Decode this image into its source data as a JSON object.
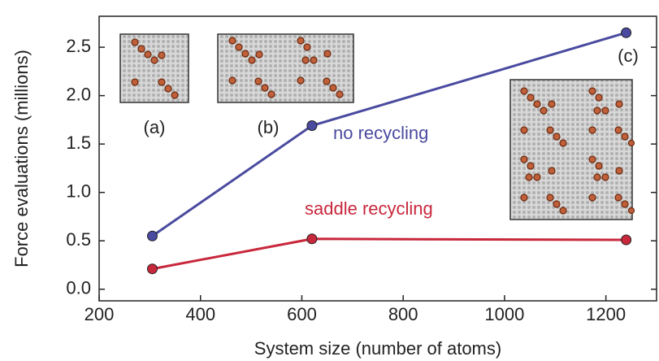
{
  "chart_data": {
    "type": "line",
    "x_label": "System size (number of atoms)",
    "y_label": "Force evaluations (millions)",
    "series": [
      {
        "name": "no recycling",
        "color": "#4a4aa0",
        "x": [
          305,
          620,
          1240
        ],
        "values": [
          0.55,
          1.69,
          2.65
        ]
      },
      {
        "name": "saddle recycling",
        "color": "#c8283c",
        "x": [
          305,
          620,
          1240
        ],
        "values": [
          0.21,
          0.52,
          0.51
        ]
      }
    ],
    "annotations": [
      "(a)",
      "(b)",
      "(c)"
    ],
    "xlim": [
      200,
      1300
    ],
    "xticks": [
      200,
      400,
      600,
      800,
      1000,
      1200
    ],
    "ylim": [
      -0.12,
      2.82
    ],
    "yticks": [
      {
        "value": 0,
        "label": "0.0"
      },
      {
        "value": 0.5,
        "label": "0.5"
      },
      {
        "value": 1,
        "label": "1.0"
      },
      {
        "value": 1.5,
        "label": "1.5"
      },
      {
        "value": 2,
        "label": "2.0"
      },
      {
        "value": 2.5,
        "label": "2.5"
      }
    ]
  }
}
